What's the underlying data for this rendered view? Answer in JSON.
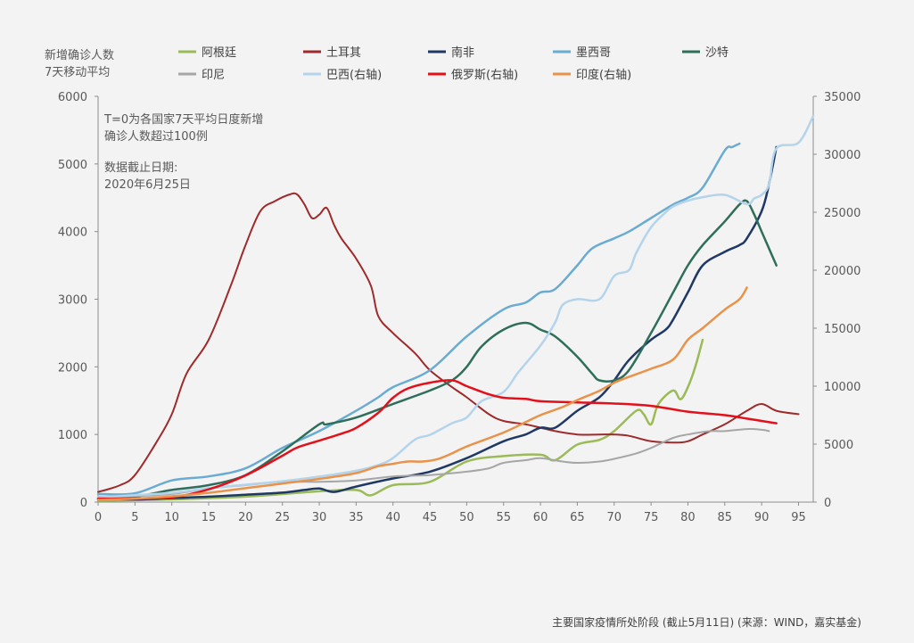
{
  "chart_data": {
    "type": "line",
    "title_lines": [
      "新增确诊人数",
      "7天移动平均"
    ],
    "annotation_lines": [
      "T=0为各国家7天平均日度新增",
      "确诊人数超过100例",
      "",
      "数据截止日期:",
      "2020年6月25日"
    ],
    "footer": "主要国家疫情所处阶段 (截止5月11日) (来源：WIND，嘉实基金)",
    "x_axis": {
      "range": [
        0,
        97
      ],
      "ticks": [
        0,
        5,
        10,
        15,
        20,
        25,
        30,
        35,
        40,
        45,
        50,
        55,
        60,
        65,
        70,
        75,
        80,
        85,
        90,
        95
      ]
    },
    "y_left": {
      "range": [
        0,
        6000
      ],
      "ticks": [
        0,
        1000,
        2000,
        3000,
        4000,
        5000,
        6000
      ]
    },
    "y_right": {
      "range": [
        0,
        35000
      ],
      "ticks": [
        0,
        5000,
        10000,
        15000,
        20000,
        25000,
        30000,
        35000
      ]
    },
    "legend": [
      {
        "name": "阿根廷",
        "color": "#9bbb59"
      },
      {
        "name": "土耳其",
        "color": "#9e2a2b"
      },
      {
        "name": "南非",
        "color": "#1f3864"
      },
      {
        "name": "墨西哥",
        "color": "#6aabd2"
      },
      {
        "name": "沙特",
        "color": "#2e6e5a"
      },
      {
        "name": "印尼",
        "color": "#a6a6a6"
      },
      {
        "name": "巴西(右轴)",
        "color": "#b4d4ec"
      },
      {
        "name": "俄罗斯(右轴)",
        "color": "#e3101b"
      },
      {
        "name": "印度(右轴)",
        "color": "#e8924a"
      }
    ],
    "series": [
      {
        "name": "阿根廷",
        "axis": "left",
        "color": "#9bbb59",
        "width": 2.5,
        "x": [
          0,
          10,
          20,
          30,
          35,
          37,
          40,
          45,
          50,
          55,
          60,
          62,
          65,
          68,
          70,
          73,
          74,
          75,
          76,
          78,
          79,
          80,
          81,
          82
        ],
        "y": [
          20,
          40,
          80,
          160,
          180,
          100,
          250,
          300,
          600,
          680,
          700,
          620,
          850,
          920,
          1050,
          1350,
          1300,
          1150,
          1450,
          1650,
          1520,
          1700,
          2000,
          2400
        ]
      },
      {
        "name": "土耳其",
        "axis": "left",
        "color": "#9e2a2b",
        "width": 2,
        "x": [
          0,
          3,
          5,
          8,
          10,
          12,
          15,
          18,
          20,
          22,
          24,
          26,
          27,
          28,
          29,
          30,
          31,
          32,
          33,
          35,
          37,
          38,
          40,
          43,
          45,
          48,
          50,
          53,
          55,
          58,
          60,
          62,
          65,
          68,
          70,
          72,
          75,
          78,
          80,
          82,
          85,
          88,
          90,
          92,
          95
        ],
        "y": [
          150,
          250,
          400,
          900,
          1300,
          1900,
          2400,
          3200,
          3800,
          4300,
          4450,
          4550,
          4550,
          4400,
          4200,
          4250,
          4350,
          4100,
          3900,
          3600,
          3200,
          2750,
          2500,
          2200,
          1950,
          1700,
          1550,
          1300,
          1200,
          1150,
          1100,
          1050,
          1000,
          1000,
          1000,
          980,
          900,
          880,
          900,
          1000,
          1150,
          1350,
          1450,
          1350,
          1300
        ]
      },
      {
        "name": "南非",
        "axis": "left",
        "color": "#1f3864",
        "width": 2.5,
        "x": [
          0,
          5,
          10,
          15,
          20,
          25,
          28,
          30,
          32,
          35,
          40,
          45,
          50,
          55,
          58,
          60,
          62,
          65,
          68,
          70,
          72,
          75,
          77,
          78,
          80,
          82,
          85,
          87,
          88,
          90,
          91,
          92
        ],
        "y": [
          50,
          40,
          60,
          80,
          110,
          140,
          180,
          200,
          150,
          230,
          350,
          450,
          650,
          900,
          1000,
          1100,
          1100,
          1350,
          1550,
          1800,
          2100,
          2400,
          2550,
          2700,
          3100,
          3500,
          3700,
          3800,
          3900,
          4300,
          4700,
          5250
        ]
      },
      {
        "name": "墨西哥",
        "axis": "left",
        "color": "#6aabd2",
        "width": 2.5,
        "x": [
          0,
          5,
          10,
          15,
          20,
          25,
          30,
          35,
          38,
          40,
          45,
          50,
          55,
          58,
          60,
          62,
          65,
          67,
          70,
          72,
          75,
          78,
          80,
          82,
          85,
          86,
          87
        ],
        "y": [
          120,
          130,
          320,
          380,
          500,
          800,
          1050,
          1350,
          1550,
          1700,
          1950,
          2450,
          2850,
          2950,
          3100,
          3150,
          3500,
          3750,
          3900,
          4000,
          4200,
          4400,
          4500,
          4650,
          5200,
          5250,
          5300
        ]
      },
      {
        "name": "沙特",
        "axis": "left",
        "color": "#2e6e5a",
        "width": 2.5,
        "x": [
          0,
          5,
          10,
          15,
          20,
          25,
          30,
          31,
          35,
          40,
          45,
          48,
          50,
          52,
          55,
          58,
          60,
          62,
          65,
          67,
          68,
          70,
          72,
          75,
          78,
          80,
          82,
          85,
          87,
          88,
          89,
          90,
          91,
          92
        ],
        "y": [
          60,
          80,
          180,
          250,
          400,
          750,
          1150,
          1150,
          1250,
          1450,
          1650,
          1800,
          2000,
          2300,
          2550,
          2650,
          2550,
          2450,
          2150,
          1900,
          1800,
          1800,
          1950,
          2500,
          3100,
          3500,
          3800,
          4150,
          4400,
          4450,
          4250,
          4000,
          3750,
          3500
        ]
      },
      {
        "name": "印尼",
        "axis": "left",
        "color": "#a6a6a6",
        "width": 2,
        "x": [
          0,
          5,
          10,
          15,
          20,
          25,
          30,
          35,
          40,
          45,
          50,
          53,
          55,
          58,
          60,
          63,
          65,
          68,
          70,
          73,
          75,
          78,
          80,
          83,
          85,
          88,
          90,
          91
        ],
        "y": [
          80,
          90,
          120,
          200,
          250,
          300,
          300,
          320,
          380,
          400,
          450,
          500,
          580,
          620,
          650,
          600,
          580,
          600,
          640,
          720,
          800,
          950,
          1000,
          1050,
          1050,
          1080,
          1070,
          1050
        ]
      },
      {
        "name": "巴西(右轴)",
        "axis": "right",
        "color": "#b4d4ec",
        "width": 2.5,
        "x": [
          0,
          5,
          10,
          15,
          20,
          25,
          30,
          35,
          38,
          40,
          43,
          45,
          48,
          50,
          52,
          55,
          57,
          60,
          62,
          63,
          65,
          68,
          70,
          72,
          73,
          75,
          77,
          78,
          80,
          82,
          85,
          88,
          89,
          90,
          91,
          92,
          95,
          97
        ],
        "y": [
          400,
          600,
          800,
          1200,
          1500,
          1800,
          2200,
          2700,
          3200,
          3800,
          5400,
          5800,
          6800,
          7300,
          8700,
          9500,
          11200,
          13500,
          15500,
          17000,
          17500,
          17500,
          19500,
          20000,
          21500,
          23700,
          25000,
          25500,
          26000,
          26300,
          26500,
          25700,
          26200,
          26500,
          27400,
          30500,
          31000,
          33300
        ]
      },
      {
        "name": "俄罗斯(右轴)",
        "axis": "right",
        "color": "#e3101b",
        "width": 2.5,
        "x": [
          0,
          5,
          10,
          15,
          20,
          25,
          27,
          30,
          33,
          35,
          38,
          40,
          42,
          45,
          48,
          50,
          53,
          55,
          58,
          60,
          65,
          70,
          75,
          80,
          85,
          88,
          90,
          92
        ],
        "y": [
          300,
          300,
          400,
          1100,
          2300,
          4000,
          4700,
          5300,
          5900,
          6400,
          7700,
          9000,
          9800,
          10300,
          10500,
          10000,
          9300,
          9000,
          8900,
          8700,
          8600,
          8500,
          8300,
          7800,
          7500,
          7200,
          7000,
          6800
        ]
      },
      {
        "name": "印度(右轴)",
        "axis": "right",
        "color": "#e8924a",
        "width": 2.5,
        "x": [
          0,
          5,
          10,
          15,
          20,
          25,
          30,
          35,
          38,
          40,
          42,
          44,
          46,
          48,
          50,
          55,
          58,
          60,
          63,
          65,
          68,
          70,
          72,
          75,
          78,
          80,
          82,
          85,
          87,
          88
        ],
        "y": [
          200,
          300,
          500,
          800,
          1200,
          1600,
          2000,
          2500,
          3100,
          3300,
          3500,
          3500,
          3700,
          4200,
          4800,
          6000,
          6900,
          7500,
          8200,
          8800,
          9600,
          10300,
          10800,
          11500,
          12300,
          14000,
          15000,
          16600,
          17500,
          18500
        ]
      }
    ]
  }
}
